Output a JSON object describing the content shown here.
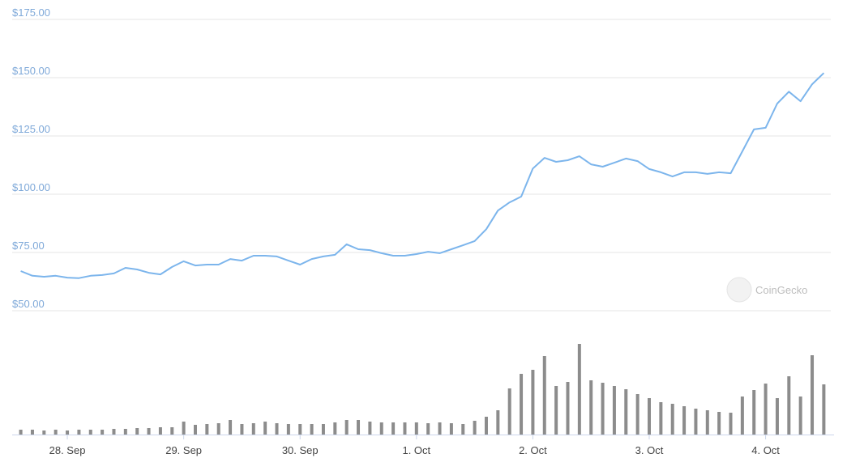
{
  "chart_data": {
    "type": "line",
    "x": [
      -0.4,
      -0.3,
      -0.2,
      -0.1,
      0,
      0.1,
      0.2,
      0.3,
      0.4,
      0.5,
      0.6,
      0.7,
      0.8,
      0.9,
      1,
      1.1,
      1.2,
      1.3,
      1.4,
      1.5,
      1.6,
      1.7,
      1.8,
      1.9,
      2,
      2.1,
      2.2,
      2.3,
      2.4,
      2.5,
      2.6,
      2.7,
      2.8,
      2.9,
      3,
      3.1,
      3.2,
      3.3,
      3.4,
      3.5,
      3.6,
      3.7,
      3.8,
      3.9,
      4,
      4.1,
      4.2,
      4.3,
      4.4,
      4.5,
      4.6,
      4.7,
      4.8,
      4.9,
      5,
      5.1,
      5.2,
      5.3,
      5.4,
      5.5,
      5.6,
      5.7,
      5.8,
      5.9,
      6,
      6.1,
      6.2,
      6.3,
      6.4,
      6.5
    ],
    "price": {
      "color": "#7cb5ec",
      "values": [
        67,
        65,
        64.6,
        65,
        64.2,
        64,
        65,
        65.3,
        66,
        68.4,
        67.7,
        66.3,
        65.6,
        68.8,
        71.2,
        69.4,
        69.8,
        69.8,
        72.2,
        71.5,
        73.6,
        73.6,
        73.3,
        71.5,
        69.8,
        72.2,
        73.3,
        74,
        78.5,
        76.4,
        76,
        74.7,
        73.6,
        73.6,
        74.3,
        75.3,
        74.7,
        76.4,
        78.1,
        79.9,
        85,
        93,
        96.5,
        99,
        111,
        115.6,
        113.9,
        114.6,
        116.3,
        112.8,
        111.8,
        113.5,
        115.3,
        114.2,
        110.8,
        109.4,
        107.6,
        109.4,
        109.4,
        108.7,
        109.4,
        109,
        118.4,
        127.8,
        128.5,
        138.9,
        144,
        139.9,
        147.2,
        152
      ]
    },
    "volume": {
      "color": "#8c8c8c",
      "values": [
        6,
        6,
        5,
        6,
        5,
        6,
        6,
        6,
        7,
        7,
        8,
        8,
        9,
        9,
        16,
        12,
        13,
        14,
        18,
        13,
        14,
        16,
        14,
        13,
        13,
        13,
        13,
        15,
        18,
        18,
        16,
        15,
        15,
        15,
        15,
        14,
        15,
        14,
        13,
        17,
        22,
        30,
        57,
        75,
        80,
        97,
        60,
        65,
        112,
        67,
        64,
        60,
        56,
        50,
        45,
        40,
        38,
        35,
        32,
        30,
        28,
        27,
        47,
        55,
        63,
        45,
        72,
        47,
        98,
        62
      ]
    },
    "xlim": [
      -0.46,
      6.56
    ],
    "xticks": [
      {
        "value": 0,
        "label": "28. Sep"
      },
      {
        "value": 1,
        "label": "29. Sep"
      },
      {
        "value": 2,
        "label": "30. Sep"
      },
      {
        "value": 3,
        "label": "1. Oct"
      },
      {
        "value": 4,
        "label": "2. Oct"
      },
      {
        "value": 5,
        "label": "3. Oct"
      },
      {
        "value": 6,
        "label": "4. Oct"
      }
    ],
    "ylim": [
      50,
      175
    ],
    "yticks": [
      {
        "value": 50,
        "label": "$50.00"
      },
      {
        "value": 75,
        "label": "$75.00"
      },
      {
        "value": 100,
        "label": "$100.00"
      },
      {
        "value": 125,
        "label": "$125.00"
      },
      {
        "value": 150,
        "label": "$150.00"
      },
      {
        "value": 175,
        "label": "$175.00"
      }
    ],
    "grid": true,
    "watermark": "CoinGecko"
  }
}
